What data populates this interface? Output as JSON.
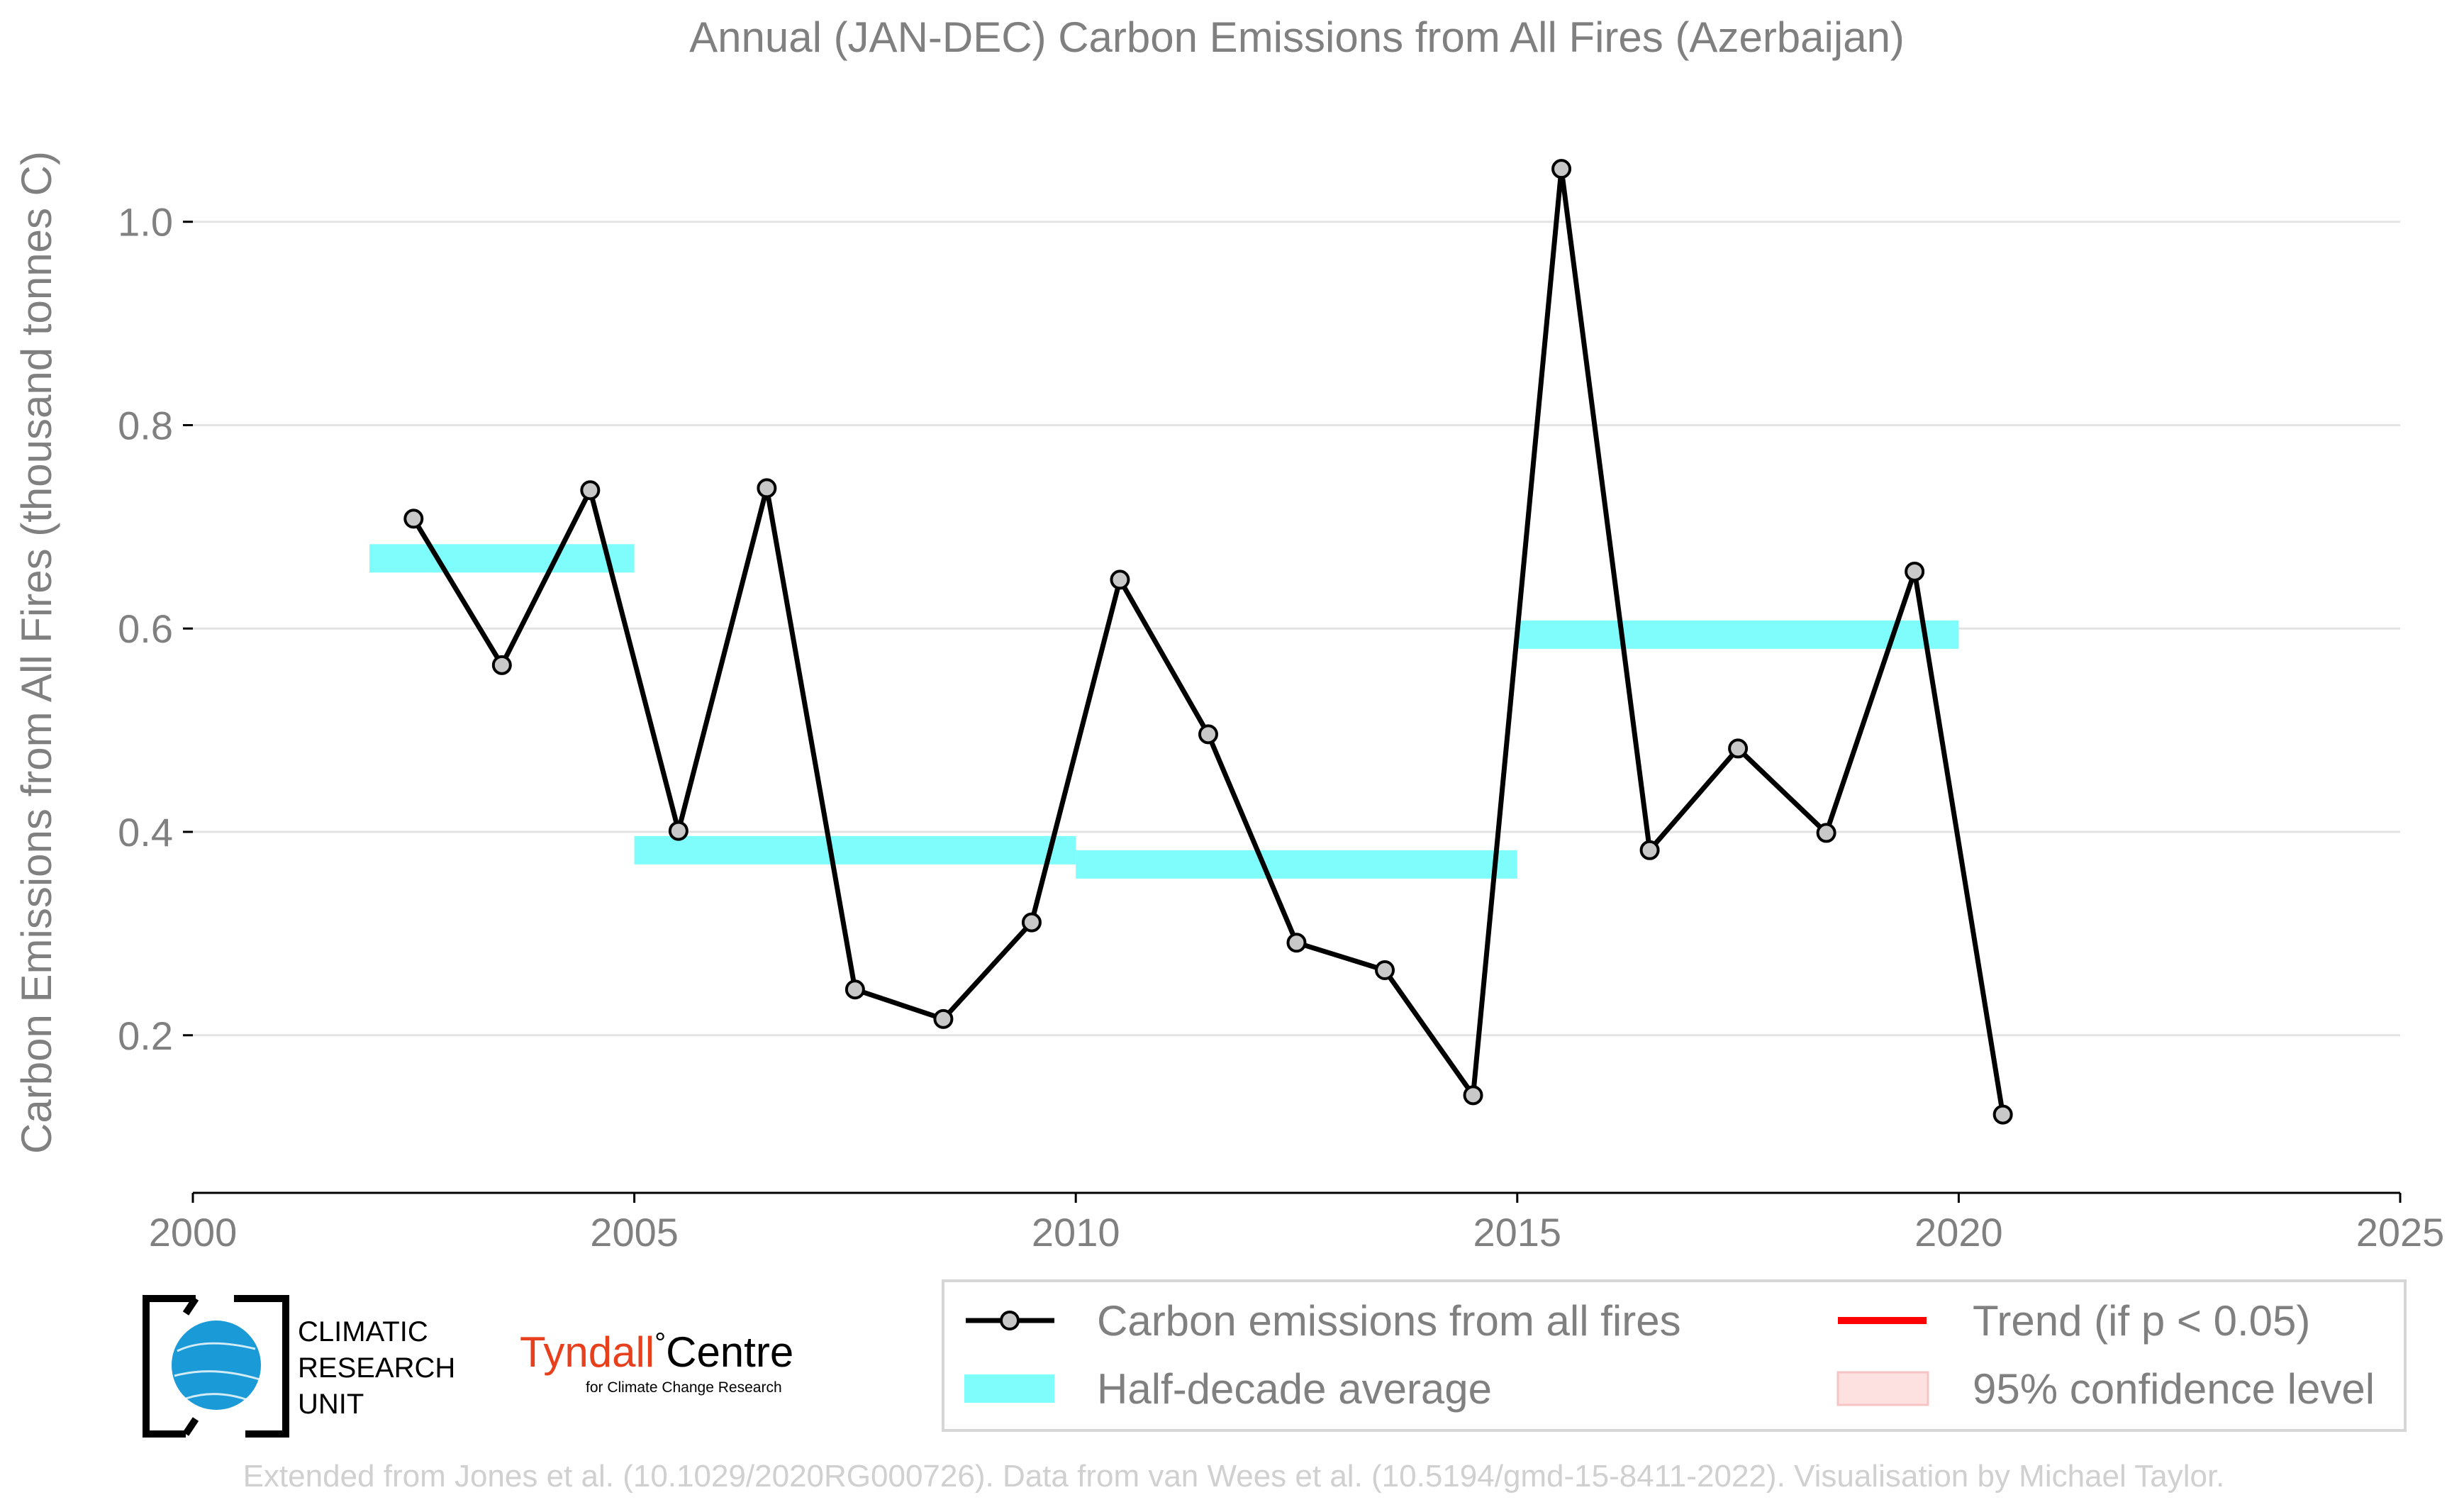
{
  "chart_data": {
    "type": "line",
    "title": "Annual (JAN-DEC) Carbon Emissions from All Fires (Azerbaijan)",
    "xlabel": "",
    "ylabel": "Carbon Emissions from All Fires (thousand tonnes C)",
    "xlim": [
      2000,
      2025
    ],
    "ylim": [
      0.045,
      1.11
    ],
    "x_ticks": [
      2000,
      2005,
      2010,
      2015,
      2020,
      2025
    ],
    "y_ticks": [
      0.2,
      0.4,
      0.6,
      0.8,
      1.0
    ],
    "y_tick_labels": [
      "0.2",
      "0.4",
      "0.6",
      "0.8",
      "1.0"
    ],
    "grid": "horizontal",
    "series": [
      {
        "name": "Carbon emissions from all fires",
        "color": "#000000",
        "marker_fill": "#c8c8c8",
        "x": [
          2002.5,
          2003.5,
          2004.5,
          2005.5,
          2006.5,
          2007.5,
          2008.5,
          2009.5,
          2010.5,
          2011.5,
          2012.5,
          2013.5,
          2014.5,
          2015.5,
          2016.5,
          2017.5,
          2018.5,
          2019.5,
          2020.5
        ],
        "y": [
          0.708,
          0.564,
          0.736,
          0.401,
          0.738,
          0.245,
          0.216,
          0.311,
          0.648,
          0.496,
          0.291,
          0.264,
          0.141,
          1.052,
          0.382,
          0.482,
          0.399,
          0.656,
          0.122
        ]
      }
    ],
    "half_decade_average": {
      "name": "Half-decade average",
      "color": "#7ffdfd",
      "segments": [
        {
          "x_start": 2002,
          "x_end": 2005,
          "y": 0.669
        },
        {
          "x_start": 2005,
          "x_end": 2010,
          "y": 0.382
        },
        {
          "x_start": 2010,
          "x_end": 2015,
          "y": 0.368
        },
        {
          "x_start": 2015,
          "x_end": 2020,
          "y": 0.594
        }
      ]
    },
    "legend": {
      "placement": "bottom-right",
      "entries": [
        {
          "label": "Carbon emissions from all fires",
          "kind": "line-marker",
          "color": "#000000"
        },
        {
          "label": "Trend (if p < 0.05)",
          "kind": "line",
          "color": "#ff0000"
        },
        {
          "label": "Half-decade average",
          "kind": "band",
          "color": "#7ffdfd"
        },
        {
          "label": "95% confidence level",
          "kind": "box",
          "color": "#fde0e0"
        }
      ]
    }
  },
  "logos": {
    "cru_lines": [
      "CLIMATIC",
      "RESEARCH",
      "UNIT"
    ],
    "tyndall_name": "Tyndall",
    "tyndall_degree": "°",
    "tyndall_centre": "Centre",
    "tyndall_sub": "for Climate Change Research"
  },
  "credit": "Extended from Jones et al. (10.1029/2020RG000726). Data from van Wees et al. (10.5194/gmd-15-8411-2022). Visualisation by Michael Taylor."
}
